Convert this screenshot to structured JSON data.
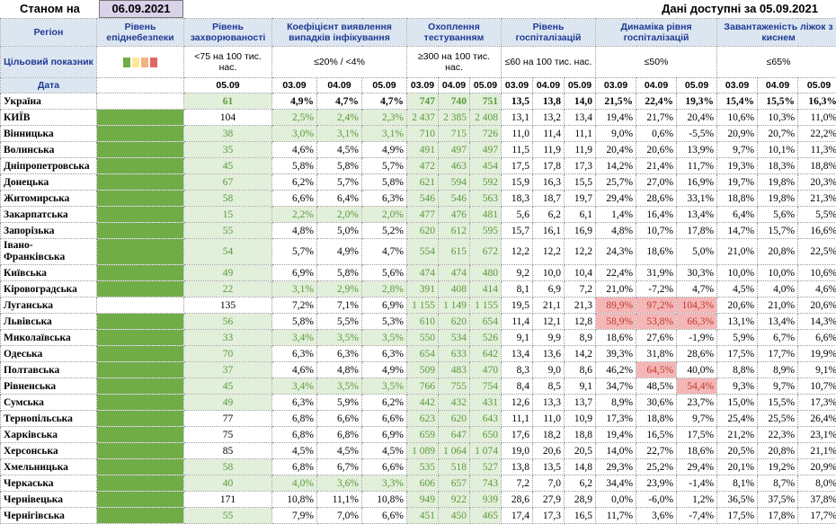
{
  "header": {
    "as_of_label": "Станом на",
    "as_of_date": "06.09.2021",
    "available_text": "Дані доступні за  05.09.2021"
  },
  "columns": {
    "region": "Регіон",
    "danger": "Рівень епіднебезпеки",
    "incidence": "Рівень захворюваності",
    "infection": "Коефіцієнт виявлення випадків інфікування",
    "testing": "Охоплення тестуванням",
    "hosp": "Рівень госпіталізацій",
    "hosp_dyn": "Динаміка рівня госпіталізацій",
    "oxygen": "Завантаженість ліжок з киснем"
  },
  "targets": {
    "label": "Цільовий показник",
    "incidence": "<75 на 100 тис. нас.",
    "infection": "≤20% / <4%",
    "testing": "≥300 на 100 тис. нас.",
    "hosp": "≤60 на 100 тис. нас.",
    "hosp_dyn": "≤50%",
    "oxygen": "≤65%",
    "danger_swatches": [
      "#70ad47",
      "#ffe699",
      "#f4b183",
      "#e06666"
    ]
  },
  "dates": {
    "label": "Дата",
    "incidence_date": "05.09",
    "d": [
      "03.09",
      "04.09",
      "05.09"
    ]
  },
  "rows": [
    {
      "name": "Україна",
      "danger": "",
      "inc": "61",
      "inf": [
        "4,9%",
        "4,7%",
        "4,7%"
      ],
      "test": [
        "747",
        "740",
        "751"
      ],
      "hosp": [
        "13,5",
        "13,8",
        "14,0"
      ],
      "dyn": [
        "21,5%",
        "22,4%",
        "19,3%"
      ],
      "oxy": [
        "15,4%",
        "15,5%",
        "16,3%"
      ]
    },
    {
      "name": "КИЇВ",
      "danger": "green",
      "inc": "104",
      "inf": [
        "2,5%",
        "2,4%",
        "2,3%"
      ],
      "test": [
        "2 437",
        "2 385",
        "2 408"
      ],
      "hosp": [
        "13,1",
        "13,2",
        "13,4"
      ],
      "dyn": [
        "19,4%",
        "21,7%",
        "20,4%"
      ],
      "oxy": [
        "10,6%",
        "10,3%",
        "11,0%"
      ]
    },
    {
      "name": "Вінницька",
      "danger": "green",
      "inc": "38",
      "inf": [
        "3,0%",
        "3,1%",
        "3,1%"
      ],
      "test": [
        "710",
        "715",
        "726"
      ],
      "hosp": [
        "11,0",
        "11,4",
        "11,1"
      ],
      "dyn": [
        "9,0%",
        "0,6%",
        "-5,5%"
      ],
      "oxy": [
        "20,9%",
        "20,7%",
        "22,2%"
      ]
    },
    {
      "name": "Волинська",
      "danger": "green",
      "inc": "35",
      "inf": [
        "4,6%",
        "4,5%",
        "4,9%"
      ],
      "test": [
        "491",
        "497",
        "497"
      ],
      "hosp": [
        "11,5",
        "11,9",
        "11,9"
      ],
      "dyn": [
        "20,4%",
        "20,6%",
        "13,9%"
      ],
      "oxy": [
        "9,7%",
        "10,1%",
        "11,3%"
      ]
    },
    {
      "name": "Дніпропетровська",
      "danger": "green",
      "inc": "45",
      "inf": [
        "5,8%",
        "5,8%",
        "5,7%"
      ],
      "test": [
        "472",
        "463",
        "454"
      ],
      "hosp": [
        "17,5",
        "17,8",
        "17,3"
      ],
      "dyn": [
        "14,2%",
        "21,4%",
        "11,7%"
      ],
      "oxy": [
        "19,3%",
        "18,3%",
        "18,8%"
      ]
    },
    {
      "name": "Донецька",
      "danger": "green",
      "inc": "67",
      "inf": [
        "6,2%",
        "5,7%",
        "5,8%"
      ],
      "test": [
        "621",
        "594",
        "592"
      ],
      "hosp": [
        "15,9",
        "16,3",
        "15,5"
      ],
      "dyn": [
        "25,7%",
        "27,0%",
        "16,9%"
      ],
      "oxy": [
        "19,7%",
        "19,8%",
        "20,3%"
      ]
    },
    {
      "name": "Житомирська",
      "danger": "green",
      "inc": "58",
      "inf": [
        "6,6%",
        "6,4%",
        "6,3%"
      ],
      "test": [
        "546",
        "546",
        "563"
      ],
      "hosp": [
        "18,3",
        "18,7",
        "19,7"
      ],
      "dyn": [
        "29,4%",
        "28,6%",
        "33,1%"
      ],
      "oxy": [
        "18,8%",
        "19,8%",
        "21,3%"
      ]
    },
    {
      "name": "Закарпатська",
      "danger": "green",
      "inc": "15",
      "inf": [
        "2,2%",
        "2,0%",
        "2,0%"
      ],
      "test": [
        "477",
        "476",
        "481"
      ],
      "hosp": [
        "5,6",
        "6,2",
        "6,1"
      ],
      "dyn": [
        "1,4%",
        "16,4%",
        "13,4%"
      ],
      "oxy": [
        "6,4%",
        "5,6%",
        "5,5%"
      ]
    },
    {
      "name": "Запорізька",
      "danger": "green",
      "inc": "55",
      "inf": [
        "4,8%",
        "5,0%",
        "5,2%"
      ],
      "test": [
        "620",
        "612",
        "595"
      ],
      "hosp": [
        "15,7",
        "16,1",
        "16,9"
      ],
      "dyn": [
        "4,8%",
        "10,7%",
        "17,8%"
      ],
      "oxy": [
        "14,7%",
        "15,7%",
        "16,6%"
      ]
    },
    {
      "name": "Івано-Франківська",
      "danger": "green",
      "inc": "54",
      "inf": [
        "5,7%",
        "4,9%",
        "4,7%"
      ],
      "test": [
        "554",
        "615",
        "672"
      ],
      "hosp": [
        "12,2",
        "12,2",
        "12,2"
      ],
      "dyn": [
        "24,3%",
        "18,6%",
        "5,0%"
      ],
      "oxy": [
        "21,0%",
        "20,8%",
        "22,5%"
      ]
    },
    {
      "name": "Київська",
      "danger": "green",
      "inc": "49",
      "inf": [
        "6,9%",
        "5,8%",
        "5,6%"
      ],
      "test": [
        "474",
        "474",
        "480"
      ],
      "hosp": [
        "9,2",
        "10,0",
        "10,4"
      ],
      "dyn": [
        "22,4%",
        "31,9%",
        "30,3%"
      ],
      "oxy": [
        "10,0%",
        "10,0%",
        "10,6%"
      ]
    },
    {
      "name": "Кіровоградська",
      "danger": "green",
      "inc": "22",
      "inf": [
        "3,1%",
        "2,9%",
        "2,8%"
      ],
      "test": [
        "391",
        "408",
        "414"
      ],
      "hosp": [
        "8,1",
        "6,9",
        "7,2"
      ],
      "dyn": [
        "21,0%",
        "-7,2%",
        "4,7%"
      ],
      "oxy": [
        "4,5%",
        "4,0%",
        "4,6%"
      ]
    },
    {
      "name": "Луганська",
      "danger": "",
      "inc": "135",
      "inf": [
        "7,2%",
        "7,1%",
        "6,9%"
      ],
      "test": [
        "1 155",
        "1 149",
        "1 155"
      ],
      "hosp": [
        "19,5",
        "21,1",
        "21,3"
      ],
      "dyn": [
        "89,9%",
        "97,2%",
        "104,3%"
      ],
      "oxy": [
        "20,6%",
        "21,0%",
        "20,6%"
      ]
    },
    {
      "name": "Львівська",
      "danger": "green",
      "inc": "56",
      "inf": [
        "5,8%",
        "5,5%",
        "5,3%"
      ],
      "test": [
        "610",
        "620",
        "654"
      ],
      "hosp": [
        "11,4",
        "12,1",
        "12,8"
      ],
      "dyn": [
        "58,9%",
        "53,8%",
        "66,3%"
      ],
      "oxy": [
        "13,1%",
        "13,4%",
        "14,3%"
      ]
    },
    {
      "name": "Миколаївська",
      "danger": "green",
      "inc": "33",
      "inf": [
        "3,4%",
        "3,5%",
        "3,5%"
      ],
      "test": [
        "550",
        "534",
        "526"
      ],
      "hosp": [
        "9,1",
        "9,9",
        "8,9"
      ],
      "dyn": [
        "18,6%",
        "27,6%",
        "-1,9%"
      ],
      "oxy": [
        "5,9%",
        "6,7%",
        "6,6%"
      ]
    },
    {
      "name": "Одеська",
      "danger": "green",
      "inc": "70",
      "inf": [
        "6,3%",
        "6,3%",
        "6,3%"
      ],
      "test": [
        "654",
        "633",
        "642"
      ],
      "hosp": [
        "13,4",
        "13,6",
        "14,2"
      ],
      "dyn": [
        "39,3%",
        "31,8%",
        "28,6%"
      ],
      "oxy": [
        "17,5%",
        "17,7%",
        "19,9%"
      ]
    },
    {
      "name": "Полтавська",
      "danger": "green",
      "inc": "37",
      "inf": [
        "4,6%",
        "4,8%",
        "4,9%"
      ],
      "test": [
        "509",
        "483",
        "470"
      ],
      "hosp": [
        "8,3",
        "9,0",
        "8,6"
      ],
      "dyn": [
        "46,2%",
        "64,5%",
        "40,0%"
      ],
      "oxy": [
        "8,8%",
        "8,9%",
        "9,1%"
      ]
    },
    {
      "name": "Рівненська",
      "danger": "green",
      "inc": "45",
      "inf": [
        "3,4%",
        "3,5%",
        "3,5%"
      ],
      "test": [
        "766",
        "755",
        "754"
      ],
      "hosp": [
        "8,4",
        "8,5",
        "9,1"
      ],
      "dyn": [
        "34,7%",
        "48,5%",
        "54,4%"
      ],
      "oxy": [
        "9,3%",
        "9,7%",
        "10,7%"
      ]
    },
    {
      "name": "Сумська",
      "danger": "green",
      "inc": "49",
      "inf": [
        "6,3%",
        "5,9%",
        "6,2%"
      ],
      "test": [
        "442",
        "432",
        "431"
      ],
      "hosp": [
        "12,6",
        "13,3",
        "13,7"
      ],
      "dyn": [
        "8,9%",
        "30,6%",
        "23,7%"
      ],
      "oxy": [
        "15,0%",
        "15,5%",
        "17,3%"
      ]
    },
    {
      "name": "Тернопільська",
      "danger": "green",
      "inc": "77",
      "inf": [
        "6,8%",
        "6,6%",
        "6,6%"
      ],
      "test": [
        "623",
        "620",
        "643"
      ],
      "hosp": [
        "11,1",
        "11,0",
        "10,9"
      ],
      "dyn": [
        "17,3%",
        "18,8%",
        "9,7%"
      ],
      "oxy": [
        "25,4%",
        "25,5%",
        "26,4%"
      ]
    },
    {
      "name": "Харківська",
      "danger": "green",
      "inc": "75",
      "inf": [
        "6,8%",
        "6,8%",
        "6,9%"
      ],
      "test": [
        "659",
        "647",
        "650"
      ],
      "hosp": [
        "17,6",
        "18,2",
        "18,8"
      ],
      "dyn": [
        "19,4%",
        "16,5%",
        "17,5%"
      ],
      "oxy": [
        "21,2%",
        "22,3%",
        "23,1%"
      ]
    },
    {
      "name": "Херсонська",
      "danger": "green",
      "inc": "85",
      "inf": [
        "4,5%",
        "4,5%",
        "4,5%"
      ],
      "test": [
        "1 089",
        "1 064",
        "1 074"
      ],
      "hosp": [
        "19,0",
        "20,6",
        "20,5"
      ],
      "dyn": [
        "14,0%",
        "22,7%",
        "18,6%"
      ],
      "oxy": [
        "20,5%",
        "20,8%",
        "21,1%"
      ]
    },
    {
      "name": "Хмельницька",
      "danger": "green",
      "inc": "58",
      "inf": [
        "6,8%",
        "6,7%",
        "6,6%"
      ],
      "test": [
        "535",
        "518",
        "527"
      ],
      "hosp": [
        "13,8",
        "13,5",
        "14,8"
      ],
      "dyn": [
        "29,3%",
        "25,2%",
        "29,4%"
      ],
      "oxy": [
        "20,1%",
        "19,2%",
        "20,9%"
      ]
    },
    {
      "name": "Черкаська",
      "danger": "green",
      "inc": "40",
      "inf": [
        "4,0%",
        "3,6%",
        "3,3%"
      ],
      "test": [
        "606",
        "657",
        "743"
      ],
      "hosp": [
        "7,2",
        "7,0",
        "6,2"
      ],
      "dyn": [
        "34,4%",
        "23,9%",
        "-1,4%"
      ],
      "oxy": [
        "8,1%",
        "8,7%",
        "8,0%"
      ]
    },
    {
      "name": "Чернівецька",
      "danger": "green",
      "inc": "171",
      "inf": [
        "10,8%",
        "11,1%",
        "10,8%"
      ],
      "test": [
        "949",
        "922",
        "939"
      ],
      "hosp": [
        "28,6",
        "27,9",
        "28,9"
      ],
      "dyn": [
        "0,0%",
        "-6,0%",
        "1,2%"
      ],
      "oxy": [
        "36,5%",
        "37,5%",
        "37,8%"
      ]
    },
    {
      "name": "Чернігівська",
      "danger": "green",
      "inc": "55",
      "inf": [
        "7,9%",
        "7,0%",
        "6,6%"
      ],
      "test": [
        "451",
        "450",
        "465"
      ],
      "hosp": [
        "17,4",
        "17,3",
        "16,5"
      ],
      "dyn": [
        "11,7%",
        "3,6%",
        "-7,4%"
      ],
      "oxy": [
        "17,5%",
        "17,8%",
        "17,7%"
      ]
    }
  ]
}
